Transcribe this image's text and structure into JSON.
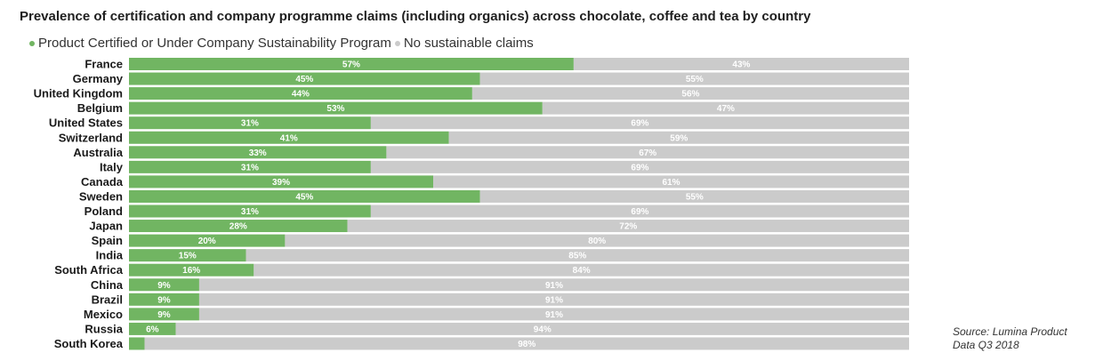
{
  "chart_data": {
    "type": "bar",
    "orientation": "horizontal",
    "stacked": true,
    "title": "Prevalence of certification and company programme claims (including organics) across chocolate, coffee and tea by country",
    "categories": [
      "France",
      "Germany",
      "United Kingdom",
      "Belgium",
      "United States",
      "Switzerland",
      "Australia",
      "Italy",
      "Canada",
      "Sweden",
      "Poland",
      "Japan",
      "Spain",
      "India",
      "South Africa",
      "China",
      "Brazil",
      "Mexico",
      "Russia",
      "South Korea"
    ],
    "series": [
      {
        "name": "Product Certified or Under Company Sustainability Program",
        "color": "#71b562",
        "values": [
          57,
          45,
          44,
          53,
          31,
          41,
          33,
          31,
          39,
          45,
          31,
          28,
          20,
          15,
          16,
          9,
          9,
          9,
          6,
          2
        ],
        "labels": [
          "57%",
          "45%",
          "44%",
          "53%",
          "31%",
          "41%",
          "33%",
          "31%",
          "39%",
          "45%",
          "31%",
          "28%",
          "20%",
          "15%",
          "16%",
          "9%",
          "9%",
          "9%",
          "6%",
          ""
        ]
      },
      {
        "name": "No sustainable claims",
        "color": "#cbcbcb",
        "values": [
          43,
          55,
          56,
          47,
          69,
          59,
          67,
          69,
          61,
          55,
          69,
          72,
          80,
          85,
          84,
          91,
          91,
          91,
          94,
          98
        ],
        "labels": [
          "43%",
          "55%",
          "56%",
          "47%",
          "69%",
          "59%",
          "67%",
          "69%",
          "61%",
          "55%",
          "69%",
          "72%",
          "80%",
          "85%",
          "84%",
          "91%",
          "91%",
          "91%",
          "94%",
          "98%"
        ]
      }
    ],
    "xlim": [
      0,
      100
    ],
    "xlabel": "",
    "ylabel": "",
    "grid": false,
    "legend_position": "top-left"
  },
  "source": {
    "line1": "Source: Lumina Product",
    "line2": "Data Q3 2018"
  }
}
